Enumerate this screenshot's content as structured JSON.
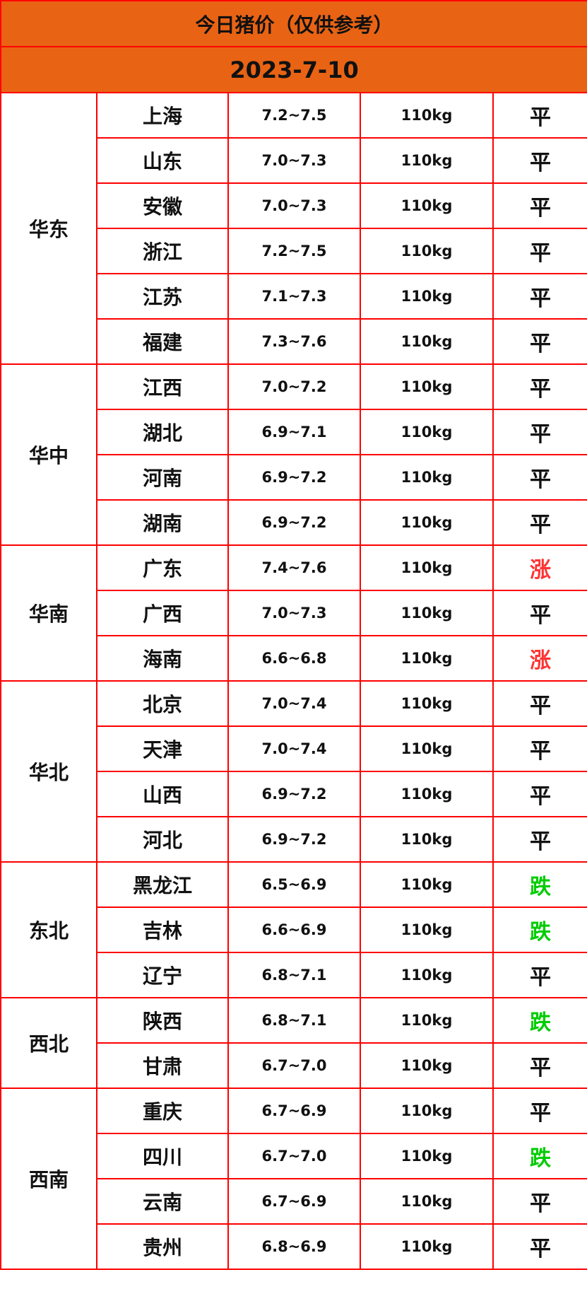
{
  "header": {
    "title": "今日猪价（仅供参考）",
    "date": "2023-7-10"
  },
  "colors": {
    "header_bg": "#e96314",
    "border": "#ff0000",
    "up": "#ff3333",
    "down": "#00cc00",
    "flat": "#111111"
  },
  "regions": [
    {
      "name": "华东",
      "rows": [
        {
          "province": "上海",
          "price": "7.2~7.5",
          "weight": "110kg",
          "trend": "平"
        },
        {
          "province": "山东",
          "price": "7.0~7.3",
          "weight": "110kg",
          "trend": "平"
        },
        {
          "province": "安徽",
          "price": "7.0~7.3",
          "weight": "110kg",
          "trend": "平"
        },
        {
          "province": "浙江",
          "price": "7.2~7.5",
          "weight": "110kg",
          "trend": "平"
        },
        {
          "province": "江苏",
          "price": "7.1~7.3",
          "weight": "110kg",
          "trend": "平"
        },
        {
          "province": "福建",
          "price": "7.3~7.6",
          "weight": "110kg",
          "trend": "平"
        }
      ]
    },
    {
      "name": "华中",
      "rows": [
        {
          "province": "江西",
          "price": "7.0~7.2",
          "weight": "110kg",
          "trend": "平"
        },
        {
          "province": "湖北",
          "price": "6.9~7.1",
          "weight": "110kg",
          "trend": "平"
        },
        {
          "province": "河南",
          "price": "6.9~7.2",
          "weight": "110kg",
          "trend": "平"
        },
        {
          "province": "湖南",
          "price": "6.9~7.2",
          "weight": "110kg",
          "trend": "平"
        }
      ]
    },
    {
      "name": "华南",
      "rows": [
        {
          "province": "广东",
          "price": "7.4~7.6",
          "weight": "110kg",
          "trend": "涨"
        },
        {
          "province": "广西",
          "price": "7.0~7.3",
          "weight": "110kg",
          "trend": "平"
        },
        {
          "province": "海南",
          "price": "6.6~6.8",
          "weight": "110kg",
          "trend": "涨"
        }
      ]
    },
    {
      "name": "华北",
      "rows": [
        {
          "province": "北京",
          "price": "7.0~7.4",
          "weight": "110kg",
          "trend": "平"
        },
        {
          "province": "天津",
          "price": "7.0~7.4",
          "weight": "110kg",
          "trend": "平"
        },
        {
          "province": "山西",
          "price": "6.9~7.2",
          "weight": "110kg",
          "trend": "平"
        },
        {
          "province": "河北",
          "price": "6.9~7.2",
          "weight": "110kg",
          "trend": "平"
        }
      ]
    },
    {
      "name": "东北",
      "rows": [
        {
          "province": "黑龙江",
          "price": "6.5~6.9",
          "weight": "110kg",
          "trend": "跌"
        },
        {
          "province": "吉林",
          "price": "6.6~6.9",
          "weight": "110kg",
          "trend": "跌"
        },
        {
          "province": "辽宁",
          "price": "6.8~7.1",
          "weight": "110kg",
          "trend": "平"
        }
      ]
    },
    {
      "name": "西北",
      "rows": [
        {
          "province": "陕西",
          "price": "6.8~7.1",
          "weight": "110kg",
          "trend": "跌"
        },
        {
          "province": "甘肃",
          "price": "6.7~7.0",
          "weight": "110kg",
          "trend": "平"
        }
      ]
    },
    {
      "name": "西南",
      "rows": [
        {
          "province": "重庆",
          "price": "6.7~6.9",
          "weight": "110kg",
          "trend": "平"
        },
        {
          "province": "四川",
          "price": "6.7~7.0",
          "weight": "110kg",
          "trend": "跌"
        },
        {
          "province": "云南",
          "price": "6.7~6.9",
          "weight": "110kg",
          "trend": "平"
        },
        {
          "province": "贵州",
          "price": "6.8~6.9",
          "weight": "110kg",
          "trend": "平"
        }
      ]
    }
  ]
}
